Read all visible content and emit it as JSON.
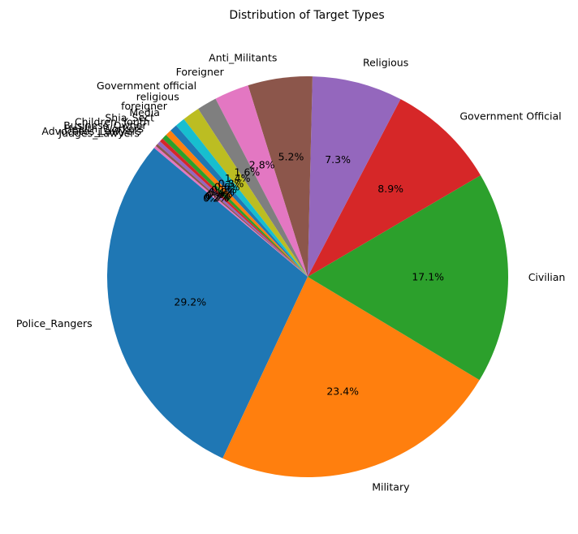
{
  "chart_data": {
    "type": "pie",
    "title": "Distribution of Target Types",
    "start_angle_deg": 140,
    "direction": "counterclockwise",
    "slices": [
      {
        "label": "Police_Rangers",
        "value": 29.2,
        "pct_label": "29.2%",
        "color": "#1f77b4"
      },
      {
        "label": "Military",
        "value": 23.4,
        "pct_label": "23.4%",
        "color": "#ff7f0e"
      },
      {
        "label": "Civilian",
        "value": 17.1,
        "pct_label": "17.1%",
        "color": "#2ca02c"
      },
      {
        "label": "Government Official",
        "value": 8.9,
        "pct_label": "8.9%",
        "color": "#d62728"
      },
      {
        "label": "Religious",
        "value": 7.3,
        "pct_label": "7.3%",
        "color": "#9467bd"
      },
      {
        "label": "Anti_Militants",
        "value": 5.2,
        "pct_label": "5.2%",
        "color": "#8c564b"
      },
      {
        "label": "Foreigner",
        "value": 2.8,
        "pct_label": "2.8%",
        "color": "#e377c2"
      },
      {
        "label": "Government official",
        "value": 1.6,
        "pct_label": "1.6%",
        "color": "#7f7f7f"
      },
      {
        "label": "religious",
        "value": 1.4,
        "pct_label": "1.4%",
        "color": "#bcbd22"
      },
      {
        "label": "foreigner",
        "value": 0.8,
        "pct_label": "0.8%",
        "color": "#17becf"
      },
      {
        "label": "Media",
        "value": 0.6,
        "pct_label": "0.6%",
        "color": "#1f77b4"
      },
      {
        "label": "Shia_Sect",
        "value": 0.5,
        "pct_label": "0.5%",
        "color": "#ff7f0e"
      },
      {
        "label": "Children_Youth",
        "value": 0.4,
        "pct_label": "0.4%",
        "color": "#2ca02c"
      },
      {
        "label": "Business_Owner",
        "value": 0.3,
        "pct_label": "0.3%",
        "color": "#d62728"
      },
      {
        "label": "Health_Workers",
        "value": 0.3,
        "pct_label": "0.3%",
        "color": "#9467bd"
      },
      {
        "label": "Advocates_Lawyers",
        "value": 0.2,
        "pct_label": "0.2%",
        "color": "#8c564b"
      },
      {
        "label": "Judges_Lawyers",
        "value": 0.2,
        "pct_label": "0.2%",
        "color": "#e377c2"
      }
    ]
  }
}
